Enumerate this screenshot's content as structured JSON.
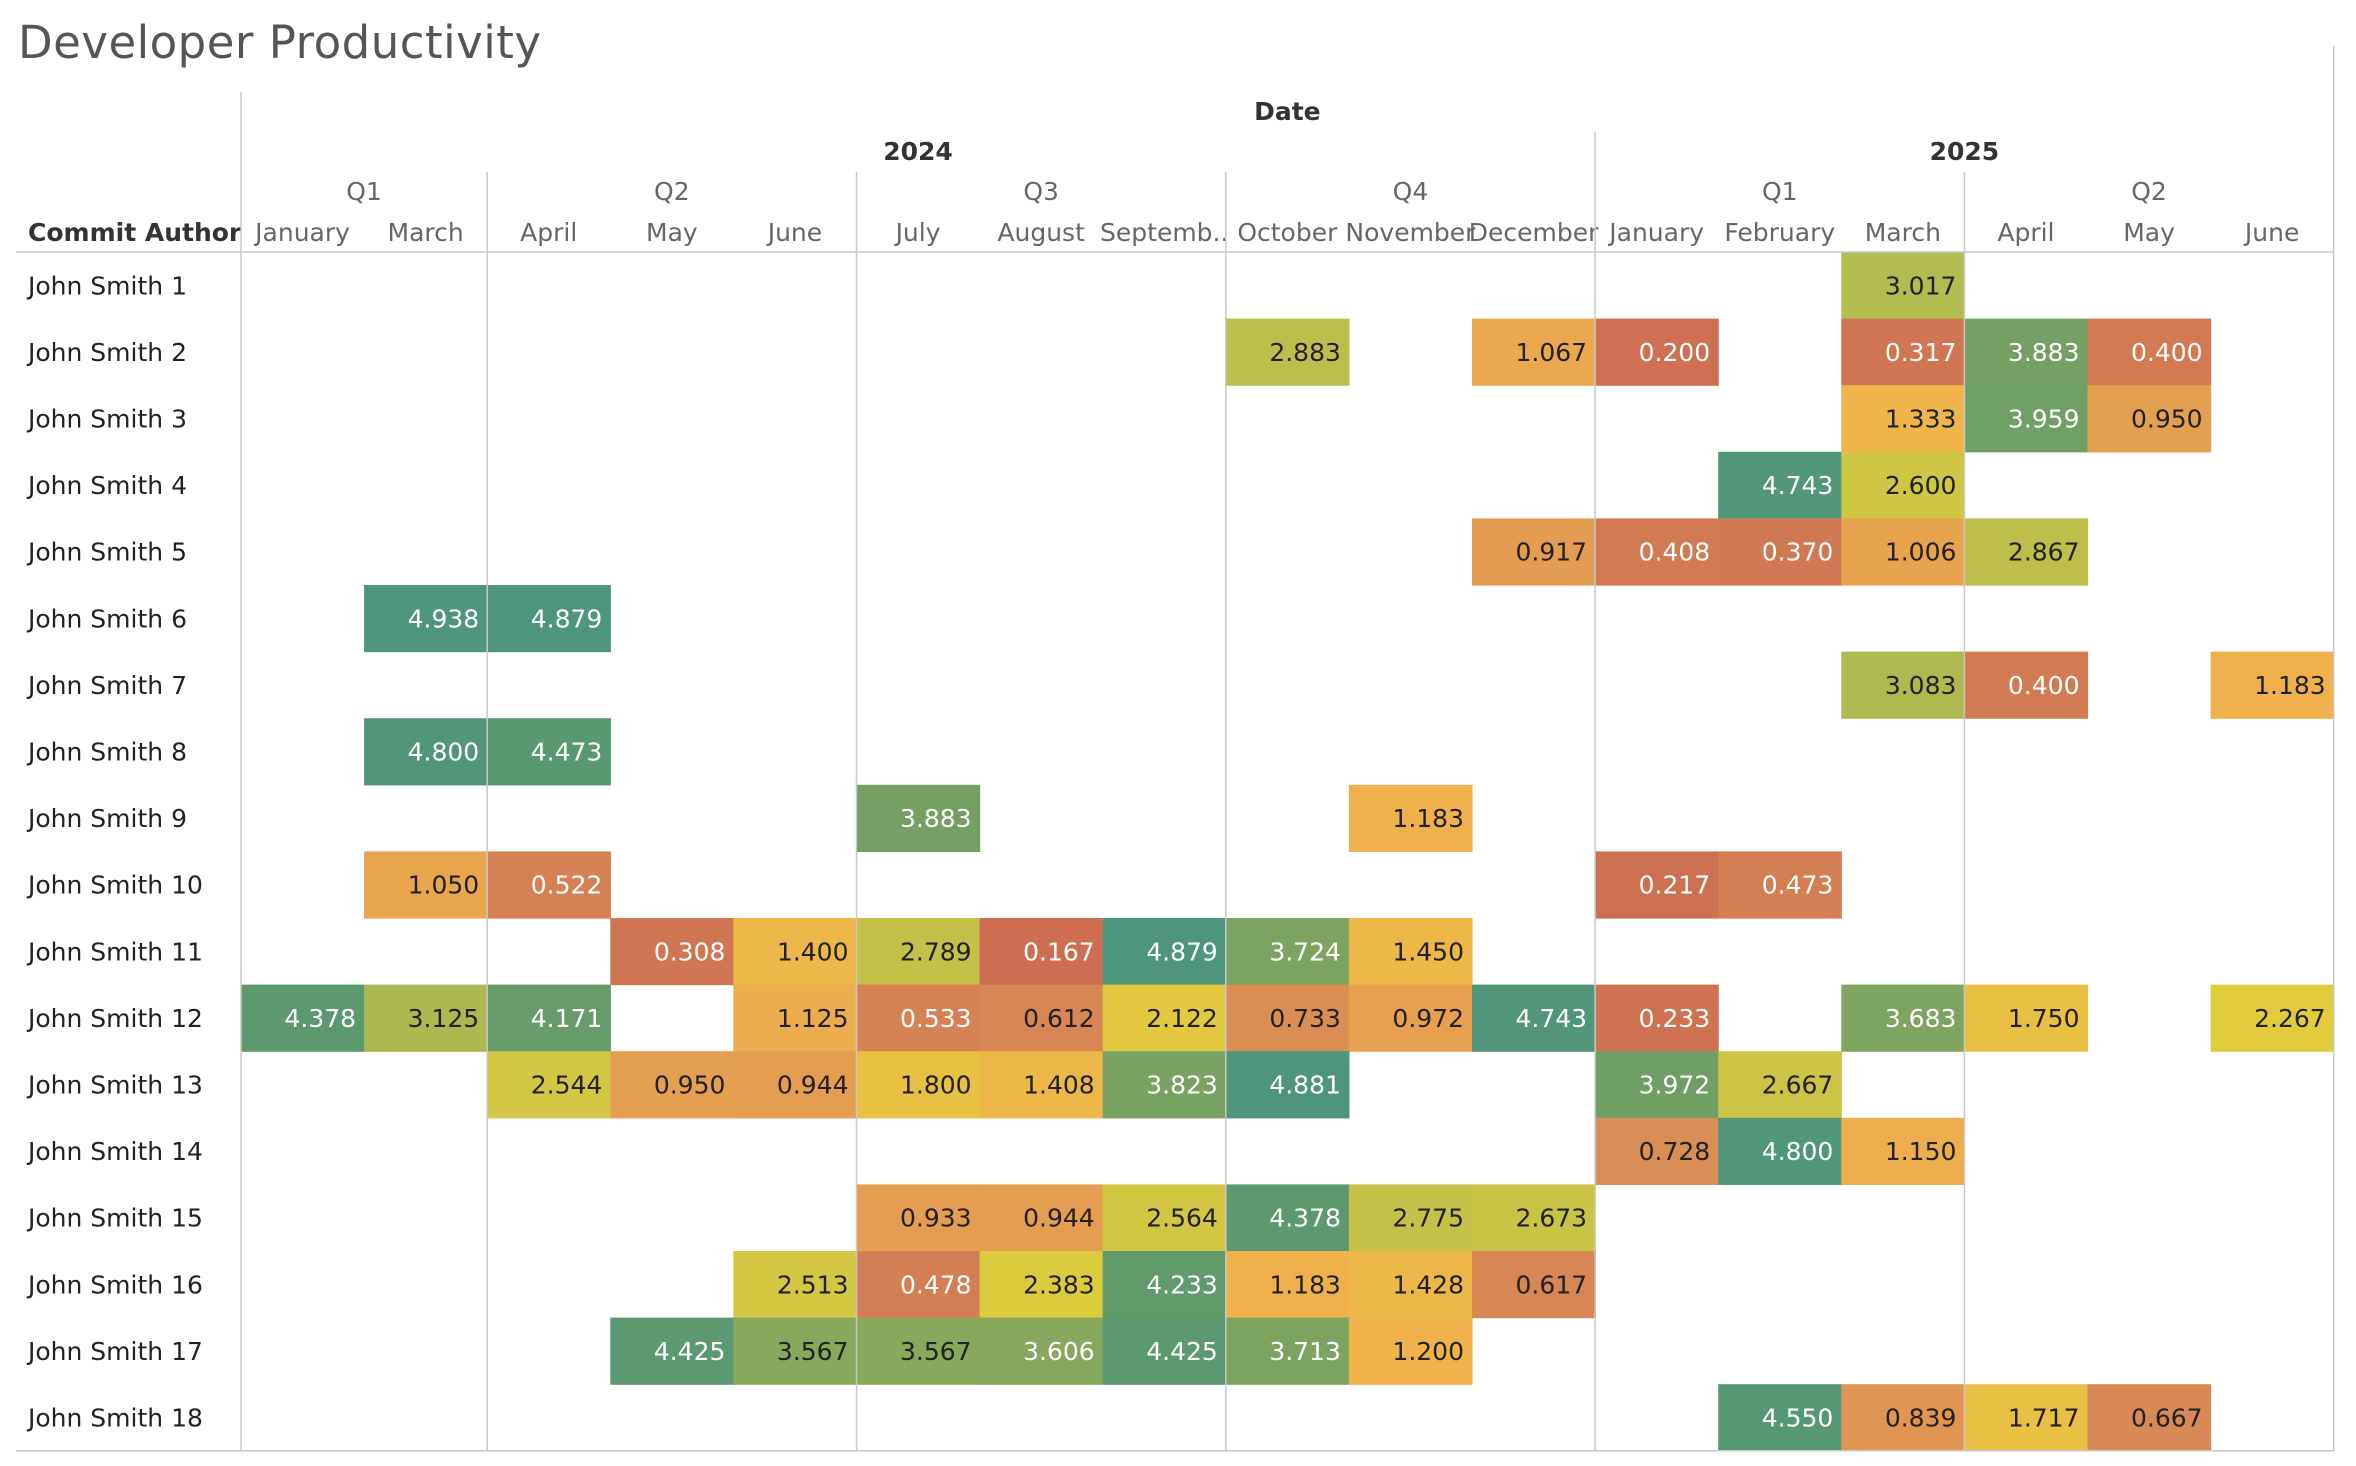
{
  "title": "Developer Productivity",
  "chart_data": {
    "type": "heatmap",
    "title": "Developer Productivity",
    "row_header": "Commit Author",
    "column_header": "Date",
    "years": [
      {
        "label": "2024",
        "span": [
          0,
          10
        ]
      },
      {
        "label": "2025",
        "span": [
          11,
          16
        ]
      }
    ],
    "quarters": [
      {
        "label": "Q1",
        "span": [
          0,
          1
        ]
      },
      {
        "label": "Q2",
        "span": [
          2,
          4
        ]
      },
      {
        "label": "Q3",
        "span": [
          5,
          7
        ]
      },
      {
        "label": "Q4",
        "span": [
          8,
          10
        ]
      },
      {
        "label": "Q1",
        "span": [
          11,
          13
        ]
      },
      {
        "label": "Q2",
        "span": [
          14,
          16
        ]
      }
    ],
    "columns": [
      "January",
      "March",
      "April",
      "May",
      "June",
      "July",
      "August",
      "Septemb..",
      "October",
      "November",
      "December",
      "January",
      "February",
      "March",
      "April",
      "May",
      "June"
    ],
    "rows": [
      "John Smith 1",
      "John Smith 2",
      "John Smith 3",
      "John Smith 4",
      "John Smith 5",
      "John Smith 6",
      "John Smith 7",
      "John Smith 8",
      "John Smith 9",
      "John Smith 10",
      "John Smith 11",
      "John Smith 12",
      "John Smith 13",
      "John Smith 14",
      "John Smith 15",
      "John Smith 16",
      "John Smith 17",
      "John Smith 18"
    ],
    "values": [
      [
        null,
        null,
        null,
        null,
        null,
        null,
        null,
        null,
        null,
        null,
        null,
        null,
        null,
        "3.017",
        null,
        null,
        null
      ],
      [
        null,
        null,
        null,
        null,
        null,
        null,
        null,
        null,
        "2.883",
        null,
        "1.067",
        "0.200",
        null,
        "0.317",
        "3.883",
        "0.400",
        null
      ],
      [
        null,
        null,
        null,
        null,
        null,
        null,
        null,
        null,
        null,
        null,
        null,
        null,
        null,
        "1.333",
        "3.959",
        "0.950",
        null
      ],
      [
        null,
        null,
        null,
        null,
        null,
        null,
        null,
        null,
        null,
        null,
        null,
        null,
        "4.743",
        "2.600",
        null,
        null,
        null
      ],
      [
        null,
        null,
        null,
        null,
        null,
        null,
        null,
        null,
        null,
        null,
        "0.917",
        "0.408",
        "0.370",
        "1.006",
        "2.867",
        null,
        null
      ],
      [
        null,
        "4.938",
        "4.879",
        null,
        null,
        null,
        null,
        null,
        null,
        null,
        null,
        null,
        null,
        null,
        null,
        null,
        null
      ],
      [
        null,
        null,
        null,
        null,
        null,
        null,
        null,
        null,
        null,
        null,
        null,
        null,
        null,
        "3.083",
        "0.400",
        null,
        "1.183"
      ],
      [
        null,
        "4.800",
        "4.473",
        null,
        null,
        null,
        null,
        null,
        null,
        null,
        null,
        null,
        null,
        null,
        null,
        null,
        null
      ],
      [
        null,
        null,
        null,
        null,
        null,
        "3.883",
        null,
        null,
        null,
        "1.183",
        null,
        null,
        null,
        null,
        null,
        null,
        null
      ],
      [
        null,
        "1.050",
        "0.522",
        null,
        null,
        null,
        null,
        null,
        null,
        null,
        null,
        "0.217",
        "0.473",
        null,
        null,
        null,
        null
      ],
      [
        null,
        null,
        null,
        "0.308",
        "1.400",
        "2.789",
        "0.167",
        "4.879",
        "3.724",
        "1.450",
        null,
        null,
        null,
        null,
        null,
        null,
        null
      ],
      [
        "4.378",
        "3.125",
        "4.171",
        null,
        "1.125",
        "0.533",
        "0.612",
        "2.122",
        "0.733",
        "0.972",
        "4.743",
        "0.233",
        null,
        "3.683",
        "1.750",
        null,
        "2.267"
      ],
      [
        null,
        null,
        "2.544",
        "0.950",
        "0.944",
        "1.800",
        "1.408",
        "3.823",
        "4.881",
        null,
        null,
        "3.972",
        "2.667",
        null,
        null,
        null,
        null
      ],
      [
        null,
        null,
        null,
        null,
        null,
        null,
        null,
        null,
        null,
        null,
        null,
        "0.728",
        "4.800",
        "1.150",
        null,
        null,
        null
      ],
      [
        null,
        null,
        null,
        null,
        null,
        "0.933",
        "0.944",
        "2.564",
        "4.378",
        "2.775",
        "2.673",
        null,
        null,
        null,
        null,
        null,
        null
      ],
      [
        null,
        null,
        null,
        null,
        "2.513",
        "0.478",
        "2.383",
        "4.233",
        "1.183",
        "1.428",
        "0.617",
        null,
        null,
        null,
        null,
        null,
        null
      ],
      [
        null,
        null,
        null,
        "4.425",
        "3.567",
        "3.567",
        "3.606",
        "4.425",
        "3.713",
        "1.200",
        null,
        null,
        null,
        null,
        null,
        null,
        null
      ],
      [
        null,
        null,
        null,
        null,
        null,
        null,
        null,
        null,
        null,
        null,
        null,
        null,
        "4.550",
        "0.839",
        "1.717",
        "0.667",
        null
      ]
    ],
    "color_scale": {
      "domain": [
        0,
        5
      ],
      "stops": [
        {
          "value": 0.0,
          "color": "#c9654f"
        },
        {
          "value": 0.7,
          "color": "#d98b55"
        },
        {
          "value": 1.2,
          "color": "#f1b24c"
        },
        {
          "value": 2.3,
          "color": "#e0ce3c"
        },
        {
          "value": 2.8,
          "color": "#c3c14a"
        },
        {
          "value": 3.2,
          "color": "#a6b751"
        },
        {
          "value": 3.7,
          "color": "#7da45f"
        },
        {
          "value": 4.3,
          "color": "#5e9a6d"
        },
        {
          "value": 5.0,
          "color": "#4b9481"
        }
      ]
    }
  }
}
